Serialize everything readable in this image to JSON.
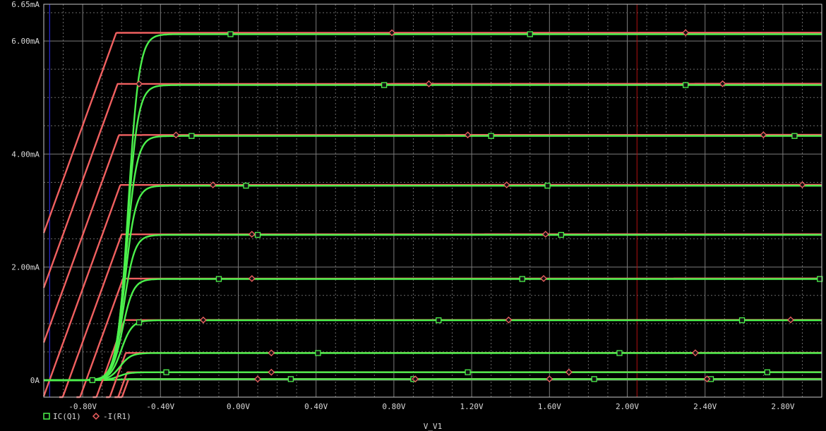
{
  "chart_data": {
    "type": "line",
    "title": "",
    "xlabel": "V_V1",
    "ylabel": "",
    "xlim": [
      -1.0,
      3.0
    ],
    "ylim": [
      -0.3,
      6.65
    ],
    "x_tick_labels": [
      {
        "value": -0.8,
        "label": "-0.80V"
      },
      {
        "value": -0.4,
        "label": "-0.40V"
      },
      {
        "value": 0.0,
        "label": "0.00V"
      },
      {
        "value": 0.4,
        "label": "0.40V"
      },
      {
        "value": 0.8,
        "label": "0.80V"
      },
      {
        "value": 1.2,
        "label": "1.20V"
      },
      {
        "value": 1.6,
        "label": "1.60V"
      },
      {
        "value": 2.0,
        "label": "2.00V"
      },
      {
        "value": 2.4,
        "label": "2.40V"
      },
      {
        "value": 2.8,
        "label": "2.80V"
      }
    ],
    "y_tick_labels": [
      {
        "value": 0,
        "label": "0A"
      },
      {
        "value": 2.0,
        "label": "2.00mA"
      },
      {
        "value": 4.0,
        "label": "4.00mA"
      },
      {
        "value": 6.0,
        "label": "6.00mA"
      },
      {
        "value": 6.65,
        "label": "6.65mA"
      }
    ],
    "grid": true,
    "cursors": [
      {
        "x": -0.97,
        "color": "#3030ff"
      },
      {
        "x": 2.05,
        "color": "#b01010"
      }
    ],
    "saturation_levels_mA": [
      0.02,
      0.14,
      0.48,
      1.06,
      1.79,
      2.57,
      3.44,
      4.32,
      5.22,
      6.12
    ],
    "series": [
      {
        "name": "IC(Q1)",
        "color": "#4cf04c",
        "marker": "square",
        "marker_x": [
          [
            -0.75,
            0.27,
            0.9,
            1.83,
            2.43
          ],
          [
            -0.37,
            1.18,
            2.72
          ],
          [
            0.41,
            1.96
          ],
          [
            -0.51,
            1.03,
            2.59
          ],
          [
            -0.1,
            1.46,
            2.99
          ],
          [
            0.1,
            1.66
          ],
          [
            0.04,
            1.59
          ],
          [
            -0.24,
            1.3,
            2.86
          ],
          [
            0.75,
            2.3
          ],
          [
            -0.04,
            1.5
          ]
        ]
      },
      {
        "name": "-I(R1)",
        "color": "#f06060",
        "marker": "diamond",
        "marker_x": [
          [
            0.1,
            0.91,
            1.6,
            2.41
          ],
          [
            0.17,
            1.7
          ],
          [
            0.17,
            2.35
          ],
          [
            -0.18,
            1.39,
            2.84
          ],
          [
            0.07,
            1.57
          ],
          [
            0.07,
            1.58
          ],
          [
            -0.13,
            1.38,
            2.9
          ],
          [
            -0.32,
            1.18,
            2.7
          ],
          [
            -0.51,
            0.98,
            2.49
          ],
          [
            0.79,
            2.3
          ]
        ]
      }
    ]
  },
  "legend": {
    "items": [
      {
        "label": "IC(Q1)"
      },
      {
        "label": "-I(R1)"
      }
    ]
  }
}
